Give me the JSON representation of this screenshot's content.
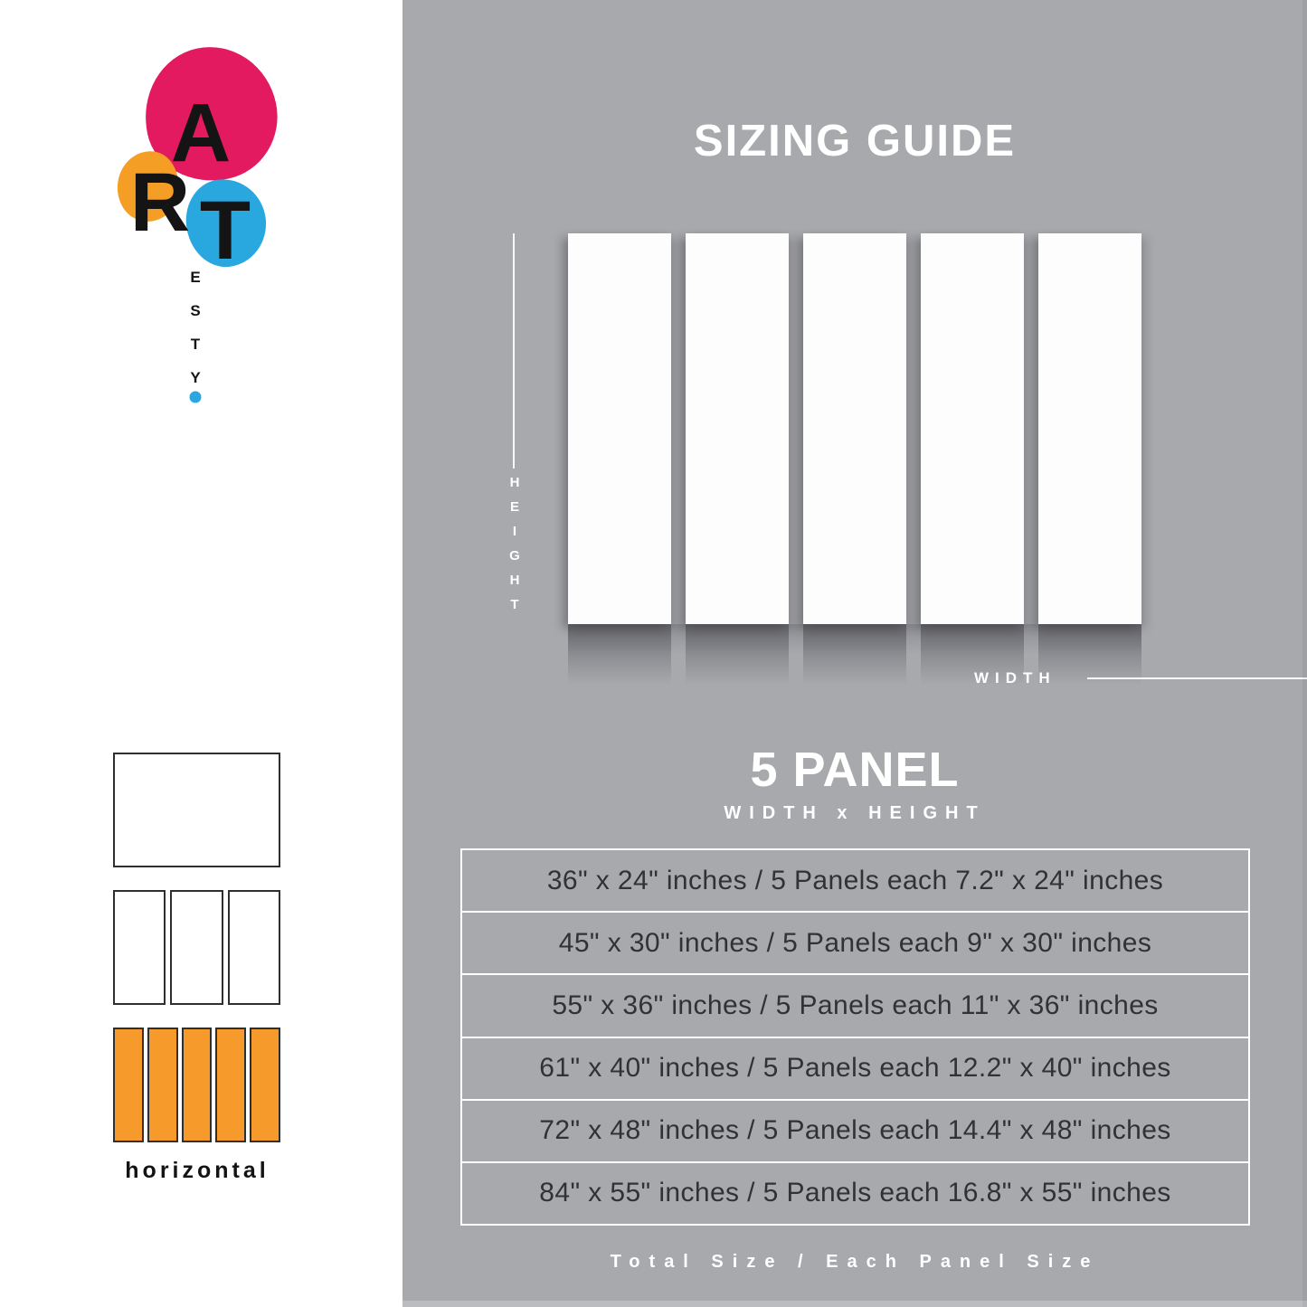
{
  "colors": {
    "pink": "#e31a5f",
    "orange": "#f59e26",
    "blue": "#29a8e0",
    "gray_background": "#a8a9ad",
    "highlight_orange": "#f59a2b",
    "panel_white": "#fdfdfd",
    "table_text": "#323236"
  },
  "brand": {
    "top_letters": [
      "A",
      "R",
      "T"
    ],
    "side_letters": "ESTY"
  },
  "header": {
    "title": "SIZING GUIDE"
  },
  "diagram": {
    "panel_count": 5,
    "height_label": "HEIGHT",
    "width_label": "WIDTH"
  },
  "panel_section": {
    "heading": "5 PANEL",
    "subheading": "WIDTH x HEIGHT"
  },
  "size_table": {
    "rows": [
      "36\" x 24\" inches / 5 Panels each 7.2\" x 24\" inches",
      "45\" x 30\" inches / 5 Panels each 9\" x 30\" inches",
      "55\" x 36\" inches / 5 Panels each 11\" x 36\" inches",
      "61\" x 40\" inches / 5 Panels each 12.2\" x 40\" inches",
      "72\" x 48\" inches / 5 Panels each 14.4\" x 48\" inches",
      "84\" x 55\" inches / 5 Panels each 16.8\" x 55\" inches"
    ]
  },
  "footer": {
    "note": "Total Size / Each Panel Size"
  },
  "sidebar": {
    "variants": [
      {
        "panels": 1,
        "style": "outline"
      },
      {
        "panels": 3,
        "style": "outline"
      },
      {
        "panels": 5,
        "style": "filled"
      }
    ],
    "orientation_label": "horizontal"
  }
}
